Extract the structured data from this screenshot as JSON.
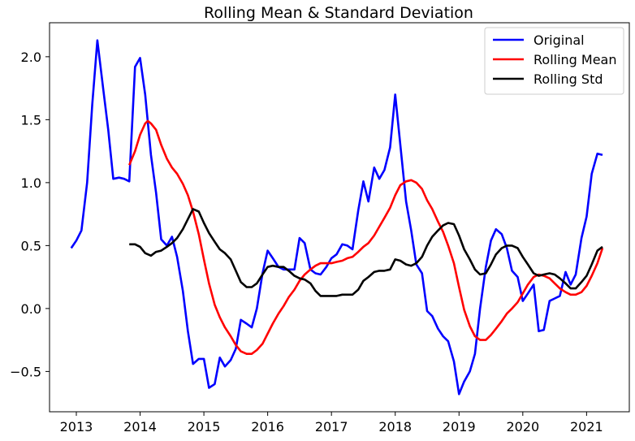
{
  "chart_data": {
    "type": "line",
    "title": "Rolling Mean & Standard Deviation",
    "xlabel": "",
    "ylabel": "",
    "x_ticks": [
      "2013",
      "2014",
      "2015",
      "2016",
      "2017",
      "2018",
      "2019",
      "2020",
      "2021"
    ],
    "y_ticks": [
      "−0.5",
      "0.0",
      "0.5",
      "1.0",
      "1.5",
      "2.0"
    ],
    "xlim": [
      2012.58,
      2021.67
    ],
    "ylim": [
      -0.82,
      2.27
    ],
    "grid": false,
    "legend_position": "top-right",
    "series": [
      {
        "name": "Original",
        "color": "#0000ff",
        "points": [
          [
            2012.92,
            0.48
          ],
          [
            2013.0,
            0.54
          ],
          [
            2013.08,
            0.62
          ],
          [
            2013.17,
            1.0
          ],
          [
            2013.25,
            1.62
          ],
          [
            2013.33,
            2.13
          ],
          [
            2013.42,
            1.75
          ],
          [
            2013.5,
            1.42
          ],
          [
            2013.58,
            1.03
          ],
          [
            2013.67,
            1.04
          ],
          [
            2013.75,
            1.03
          ],
          [
            2013.83,
            1.01
          ],
          [
            2013.92,
            1.92
          ],
          [
            2014.0,
            1.99
          ],
          [
            2014.08,
            1.7
          ],
          [
            2014.17,
            1.22
          ],
          [
            2014.25,
            0.92
          ],
          [
            2014.33,
            0.55
          ],
          [
            2014.42,
            0.5
          ],
          [
            2014.5,
            0.57
          ],
          [
            2014.58,
            0.41
          ],
          [
            2014.67,
            0.14
          ],
          [
            2014.75,
            -0.18
          ],
          [
            2014.83,
            -0.44
          ],
          [
            2014.92,
            -0.4
          ],
          [
            2015.0,
            -0.4
          ],
          [
            2015.08,
            -0.63
          ],
          [
            2015.17,
            -0.6
          ],
          [
            2015.25,
            -0.39
          ],
          [
            2015.33,
            -0.46
          ],
          [
            2015.42,
            -0.41
          ],
          [
            2015.5,
            -0.32
          ],
          [
            2015.58,
            -0.09
          ],
          [
            2015.67,
            -0.12
          ],
          [
            2015.75,
            -0.15
          ],
          [
            2015.83,
            0.0
          ],
          [
            2015.92,
            0.28
          ],
          [
            2016.0,
            0.46
          ],
          [
            2016.08,
            0.4
          ],
          [
            2016.17,
            0.33
          ],
          [
            2016.25,
            0.31
          ],
          [
            2016.33,
            0.31
          ],
          [
            2016.42,
            0.31
          ],
          [
            2016.5,
            0.56
          ],
          [
            2016.58,
            0.52
          ],
          [
            2016.67,
            0.31
          ],
          [
            2016.75,
            0.28
          ],
          [
            2016.83,
            0.27
          ],
          [
            2016.92,
            0.33
          ],
          [
            2017.0,
            0.4
          ],
          [
            2017.08,
            0.43
          ],
          [
            2017.17,
            0.51
          ],
          [
            2017.25,
            0.5
          ],
          [
            2017.33,
            0.47
          ],
          [
            2017.42,
            0.78
          ],
          [
            2017.5,
            1.01
          ],
          [
            2017.58,
            0.85
          ],
          [
            2017.67,
            1.12
          ],
          [
            2017.75,
            1.03
          ],
          [
            2017.83,
            1.1
          ],
          [
            2017.92,
            1.28
          ],
          [
            2018.0,
            1.7
          ],
          [
            2018.08,
            1.3
          ],
          [
            2018.17,
            0.85
          ],
          [
            2018.25,
            0.62
          ],
          [
            2018.33,
            0.35
          ],
          [
            2018.42,
            0.28
          ],
          [
            2018.5,
            -0.02
          ],
          [
            2018.58,
            -0.06
          ],
          [
            2018.67,
            -0.16
          ],
          [
            2018.75,
            -0.22
          ],
          [
            2018.83,
            -0.26
          ],
          [
            2018.92,
            -0.42
          ],
          [
            2019.0,
            -0.68
          ],
          [
            2019.08,
            -0.58
          ],
          [
            2019.17,
            -0.5
          ],
          [
            2019.25,
            -0.36
          ],
          [
            2019.33,
            0.0
          ],
          [
            2019.42,
            0.33
          ],
          [
            2019.5,
            0.54
          ],
          [
            2019.58,
            0.63
          ],
          [
            2019.67,
            0.59
          ],
          [
            2019.75,
            0.48
          ],
          [
            2019.83,
            0.3
          ],
          [
            2019.92,
            0.25
          ],
          [
            2020.0,
            0.06
          ],
          [
            2020.08,
            0.12
          ],
          [
            2020.17,
            0.19
          ],
          [
            2020.25,
            -0.18
          ],
          [
            2020.33,
            -0.17
          ],
          [
            2020.42,
            0.06
          ],
          [
            2020.5,
            0.08
          ],
          [
            2020.58,
            0.1
          ],
          [
            2020.67,
            0.29
          ],
          [
            2020.75,
            0.19
          ],
          [
            2020.83,
            0.27
          ],
          [
            2020.92,
            0.56
          ],
          [
            2021.0,
            0.73
          ],
          [
            2021.08,
            1.07
          ],
          [
            2021.17,
            1.23
          ],
          [
            2021.25,
            1.22
          ]
        ]
      },
      {
        "name": "Rolling Mean",
        "color": "#ff0000",
        "points": [
          [
            2013.83,
            1.14
          ],
          [
            2013.92,
            1.25
          ],
          [
            2014.0,
            1.38
          ],
          [
            2014.08,
            1.47
          ],
          [
            2014.12,
            1.49
          ],
          [
            2014.17,
            1.47
          ],
          [
            2014.25,
            1.42
          ],
          [
            2014.33,
            1.3
          ],
          [
            2014.42,
            1.19
          ],
          [
            2014.5,
            1.12
          ],
          [
            2014.58,
            1.07
          ],
          [
            2014.67,
            0.99
          ],
          [
            2014.75,
            0.9
          ],
          [
            2014.83,
            0.77
          ],
          [
            2014.92,
            0.59
          ],
          [
            2015.0,
            0.39
          ],
          [
            2015.08,
            0.2
          ],
          [
            2015.17,
            0.03
          ],
          [
            2015.25,
            -0.07
          ],
          [
            2015.33,
            -0.15
          ],
          [
            2015.42,
            -0.22
          ],
          [
            2015.5,
            -0.29
          ],
          [
            2015.58,
            -0.34
          ],
          [
            2015.67,
            -0.36
          ],
          [
            2015.75,
            -0.36
          ],
          [
            2015.83,
            -0.33
          ],
          [
            2015.92,
            -0.28
          ],
          [
            2016.0,
            -0.2
          ],
          [
            2016.08,
            -0.12
          ],
          [
            2016.17,
            -0.04
          ],
          [
            2016.25,
            0.02
          ],
          [
            2016.33,
            0.09
          ],
          [
            2016.42,
            0.15
          ],
          [
            2016.5,
            0.22
          ],
          [
            2016.58,
            0.27
          ],
          [
            2016.67,
            0.31
          ],
          [
            2016.75,
            0.34
          ],
          [
            2016.83,
            0.36
          ],
          [
            2016.92,
            0.36
          ],
          [
            2017.0,
            0.36
          ],
          [
            2017.08,
            0.37
          ],
          [
            2017.17,
            0.38
          ],
          [
            2017.25,
            0.4
          ],
          [
            2017.33,
            0.41
          ],
          [
            2017.42,
            0.45
          ],
          [
            2017.5,
            0.49
          ],
          [
            2017.58,
            0.52
          ],
          [
            2017.67,
            0.58
          ],
          [
            2017.75,
            0.65
          ],
          [
            2017.83,
            0.72
          ],
          [
            2017.92,
            0.8
          ],
          [
            2018.0,
            0.9
          ],
          [
            2018.08,
            0.98
          ],
          [
            2018.17,
            1.01
          ],
          [
            2018.25,
            1.02
          ],
          [
            2018.33,
            1.0
          ],
          [
            2018.42,
            0.95
          ],
          [
            2018.5,
            0.86
          ],
          [
            2018.58,
            0.79
          ],
          [
            2018.67,
            0.69
          ],
          [
            2018.75,
            0.61
          ],
          [
            2018.83,
            0.5
          ],
          [
            2018.92,
            0.36
          ],
          [
            2019.0,
            0.17
          ],
          [
            2019.08,
            -0.01
          ],
          [
            2019.17,
            -0.14
          ],
          [
            2019.25,
            -0.22
          ],
          [
            2019.33,
            -0.25
          ],
          [
            2019.42,
            -0.25
          ],
          [
            2019.5,
            -0.21
          ],
          [
            2019.58,
            -0.16
          ],
          [
            2019.67,
            -0.1
          ],
          [
            2019.75,
            -0.04
          ],
          [
            2019.83,
            0.0
          ],
          [
            2019.92,
            0.05
          ],
          [
            2020.0,
            0.12
          ],
          [
            2020.08,
            0.19
          ],
          [
            2020.17,
            0.25
          ],
          [
            2020.25,
            0.27
          ],
          [
            2020.33,
            0.26
          ],
          [
            2020.42,
            0.24
          ],
          [
            2020.5,
            0.2
          ],
          [
            2020.58,
            0.16
          ],
          [
            2020.67,
            0.13
          ],
          [
            2020.75,
            0.11
          ],
          [
            2020.83,
            0.11
          ],
          [
            2020.92,
            0.13
          ],
          [
            2021.0,
            0.18
          ],
          [
            2021.08,
            0.26
          ],
          [
            2021.17,
            0.36
          ],
          [
            2021.25,
            0.48
          ]
        ]
      },
      {
        "name": "Rolling Std",
        "color": "#000000",
        "points": [
          [
            2013.83,
            0.51
          ],
          [
            2013.92,
            0.51
          ],
          [
            2014.0,
            0.49
          ],
          [
            2014.08,
            0.44
          ],
          [
            2014.17,
            0.42
          ],
          [
            2014.25,
            0.45
          ],
          [
            2014.33,
            0.46
          ],
          [
            2014.42,
            0.49
          ],
          [
            2014.5,
            0.52
          ],
          [
            2014.58,
            0.56
          ],
          [
            2014.67,
            0.63
          ],
          [
            2014.75,
            0.71
          ],
          [
            2014.83,
            0.79
          ],
          [
            2014.92,
            0.77
          ],
          [
            2015.0,
            0.68
          ],
          [
            2015.08,
            0.6
          ],
          [
            2015.17,
            0.53
          ],
          [
            2015.25,
            0.47
          ],
          [
            2015.33,
            0.44
          ],
          [
            2015.42,
            0.39
          ],
          [
            2015.5,
            0.3
          ],
          [
            2015.58,
            0.21
          ],
          [
            2015.67,
            0.17
          ],
          [
            2015.75,
            0.17
          ],
          [
            2015.83,
            0.2
          ],
          [
            2015.92,
            0.27
          ],
          [
            2016.0,
            0.33
          ],
          [
            2016.08,
            0.34
          ],
          [
            2016.17,
            0.33
          ],
          [
            2016.25,
            0.33
          ],
          [
            2016.33,
            0.3
          ],
          [
            2016.42,
            0.26
          ],
          [
            2016.5,
            0.24
          ],
          [
            2016.58,
            0.23
          ],
          [
            2016.67,
            0.2
          ],
          [
            2016.75,
            0.14
          ],
          [
            2016.83,
            0.1
          ],
          [
            2016.92,
            0.1
          ],
          [
            2017.0,
            0.1
          ],
          [
            2017.08,
            0.1
          ],
          [
            2017.17,
            0.11
          ],
          [
            2017.25,
            0.11
          ],
          [
            2017.33,
            0.11
          ],
          [
            2017.42,
            0.15
          ],
          [
            2017.5,
            0.22
          ],
          [
            2017.58,
            0.25
          ],
          [
            2017.67,
            0.29
          ],
          [
            2017.75,
            0.3
          ],
          [
            2017.83,
            0.3
          ],
          [
            2017.92,
            0.31
          ],
          [
            2018.0,
            0.39
          ],
          [
            2018.08,
            0.38
          ],
          [
            2018.17,
            0.35
          ],
          [
            2018.25,
            0.34
          ],
          [
            2018.33,
            0.36
          ],
          [
            2018.42,
            0.41
          ],
          [
            2018.5,
            0.5
          ],
          [
            2018.58,
            0.57
          ],
          [
            2018.67,
            0.62
          ],
          [
            2018.75,
            0.66
          ],
          [
            2018.83,
            0.68
          ],
          [
            2018.92,
            0.67
          ],
          [
            2019.0,
            0.58
          ],
          [
            2019.08,
            0.47
          ],
          [
            2019.17,
            0.39
          ],
          [
            2019.25,
            0.31
          ],
          [
            2019.33,
            0.27
          ],
          [
            2019.42,
            0.28
          ],
          [
            2019.5,
            0.35
          ],
          [
            2019.58,
            0.43
          ],
          [
            2019.67,
            0.48
          ],
          [
            2019.75,
            0.5
          ],
          [
            2019.83,
            0.5
          ],
          [
            2019.92,
            0.48
          ],
          [
            2020.0,
            0.41
          ],
          [
            2020.08,
            0.35
          ],
          [
            2020.17,
            0.28
          ],
          [
            2020.25,
            0.26
          ],
          [
            2020.33,
            0.27
          ],
          [
            2020.42,
            0.28
          ],
          [
            2020.5,
            0.27
          ],
          [
            2020.58,
            0.24
          ],
          [
            2020.67,
            0.2
          ],
          [
            2020.75,
            0.16
          ],
          [
            2020.83,
            0.16
          ],
          [
            2020.92,
            0.21
          ],
          [
            2021.0,
            0.26
          ],
          [
            2021.08,
            0.35
          ],
          [
            2021.17,
            0.46
          ],
          [
            2021.25,
            0.49
          ]
        ]
      }
    ]
  }
}
